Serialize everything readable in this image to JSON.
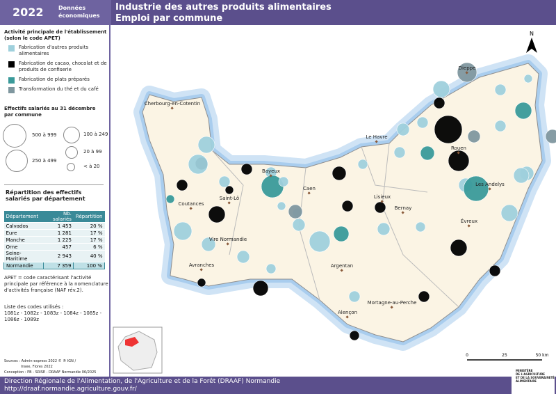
{
  "header": {
    "year": "2022",
    "badge": [
      "Données",
      "économiques"
    ],
    "title": "Industrie des autres produits alimentaires",
    "subtitle": "Emploi par commune"
  },
  "legend": {
    "title": [
      "Activité principale de l'établissement",
      "(selon le code APET)"
    ],
    "items": [
      {
        "label": [
          "Fabrication d'autres produits",
          "alimentaires"
        ],
        "color": "#9fd0dc"
      },
      {
        "label": [
          "Fabrication de cacao, chocolat et de",
          "produits de confiserie"
        ],
        "color": "#000000"
      },
      {
        "label": [
          "Fabrication de plats préparés"
        ],
        "color": "#3a9a9a"
      },
      {
        "label": [
          "Transformation du thé et du café"
        ],
        "color": "#7f979f"
      }
    ]
  },
  "size_legend": {
    "title": [
      "Effectifs salariés au 31 décembre",
      "par commune"
    ],
    "items": [
      "500 à 999",
      "100 à 249",
      "250 à 499",
      "20 à 99",
      "< à 20"
    ]
  },
  "table": {
    "title": [
      "Répartition des effectifs",
      "salariés par département"
    ],
    "columns": [
      "Département",
      "Nb. salariés",
      "Répartition"
    ],
    "rows": [
      [
        "Calvados",
        "1 453",
        "20 %"
      ],
      [
        "Eure",
        "1 281",
        "17 %"
      ],
      [
        "Manche",
        "1 225",
        "17 %"
      ],
      [
        "Orne",
        "457",
        "6 %"
      ],
      [
        "Seine-Maritime",
        "2 943",
        "40 %"
      ],
      [
        "Normandie",
        "7 359",
        "100 %"
      ]
    ]
  },
  "notes": [
    [
      "APET = code caractérisant l'activité",
      "principale par référence à la nomenclature",
      "d'activités française (NAF rév.2)."
    ],
    [
      "Liste des codes utilisés :",
      "1081z - 1082z - 1083z - 1084z - 1085z -",
      "1086z - 1089z"
    ]
  ],
  "sources": [
    "Sources : Admin-express 2022 © ® IGN /",
    "Insee, Flores 2022",
    "Conception : PB - SRISE - DRAAF Normandie 06/2025"
  ],
  "map": {
    "north": "N",
    "cities": [
      "Cherbourg-en-Cotentin",
      "Dieppe",
      "Le Havre",
      "Rouen",
      "Bayeux",
      "Caen",
      "Saint-Lô",
      "Lisieux",
      "Les Andelys",
      "Coutances",
      "Bernay",
      "Évreux",
      "Vire Normandie",
      "Avranches",
      "Argentan",
      "Mortagne-au-Perche",
      "Alençon"
    ],
    "scale": [
      "0",
      "25",
      "50 km"
    ]
  },
  "footer": {
    "org": "Direction Régionale de l'Alimentation, de l'Agriculture et de la Forêt (DRAAF) Normandie",
    "url": "http://draaf.normandie.agriculture.gouv.fr/",
    "logo": [
      "MINISTÈRE",
      "DE L'AGRICULTURE",
      "ET DE LA SOUVERAINETÉ",
      "ALIMENTAIRE"
    ]
  }
}
